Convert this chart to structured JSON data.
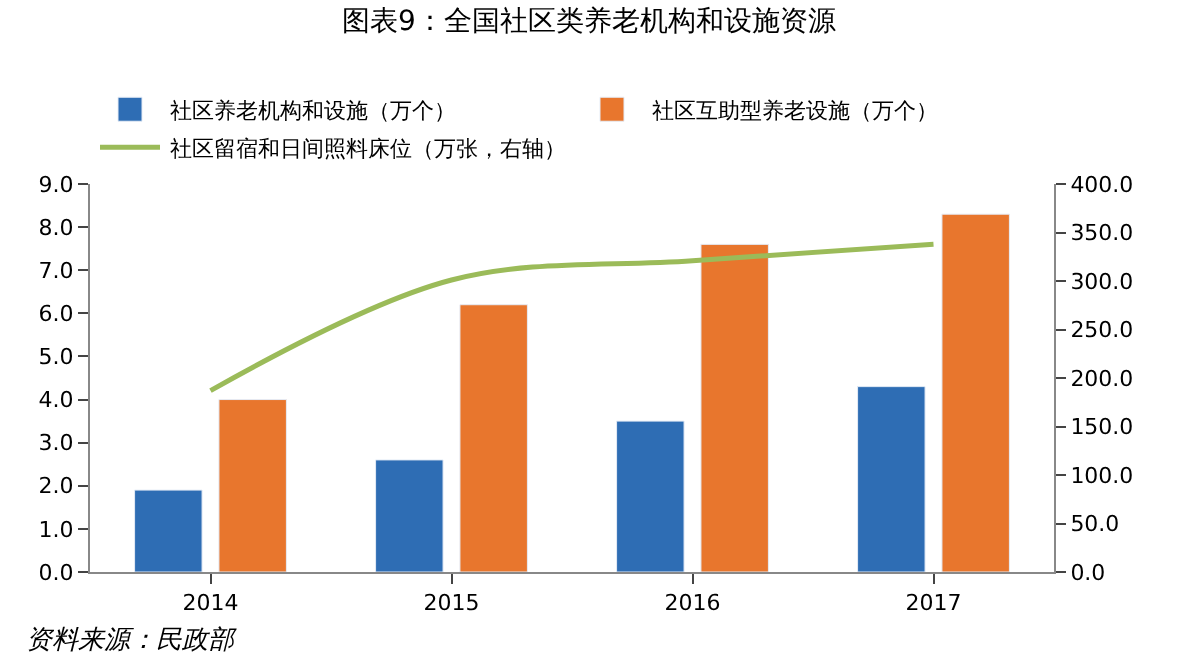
{
  "chart_data": {
    "type": "bar",
    "title": "图表9：全国社区类养老机构和设施资源",
    "categories": [
      "2014",
      "2015",
      "2016",
      "2017"
    ],
    "series": [
      {
        "name": "社区养老机构和设施（万个）",
        "color": "#2e6db4",
        "values": [
          1.9,
          2.6,
          3.5,
          4.3
        ]
      },
      {
        "name": "社区互助型养老设施（万个）",
        "color": "#e8762d",
        "values": [
          4.0,
          6.2,
          7.6,
          8.3
        ]
      },
      {
        "name": "社区留宿和日间照料床位（万张，右轴）",
        "color": "#9bbb59",
        "type": "line",
        "axis": "y2",
        "marker": "none",
        "values": [
          187,
          301,
          321,
          338
        ]
      }
    ],
    "ylim": [
      0,
      9
    ],
    "yticks": [
      {
        "value": 0,
        "label": "0.0"
      },
      {
        "value": 1,
        "label": "1.0"
      },
      {
        "value": 2,
        "label": "2.0"
      },
      {
        "value": 3,
        "label": "3.0"
      },
      {
        "value": 4,
        "label": "4.0"
      },
      {
        "value": 5,
        "label": "5.0"
      },
      {
        "value": 6,
        "label": "6.0"
      },
      {
        "value": 7,
        "label": "7.0"
      },
      {
        "value": 8,
        "label": "8.0"
      },
      {
        "value": 9,
        "label": "9.0"
      }
    ],
    "y2lim": [
      0,
      400
    ],
    "y2ticks": [
      {
        "value": 0,
        "label": "0.0"
      },
      {
        "value": 50,
        "label": "50.0"
      },
      {
        "value": 100,
        "label": "100.0"
      },
      {
        "value": 150,
        "label": "150.0"
      },
      {
        "value": 200,
        "label": "200.0"
      },
      {
        "value": 250,
        "label": "250.0"
      },
      {
        "value": 300,
        "label": "300.0"
      },
      {
        "value": 350,
        "label": "350.0"
      },
      {
        "value": 400,
        "label": "400.0"
      }
    ],
    "legend": "top",
    "annotations": [
      "资料来源：民政部"
    ]
  }
}
